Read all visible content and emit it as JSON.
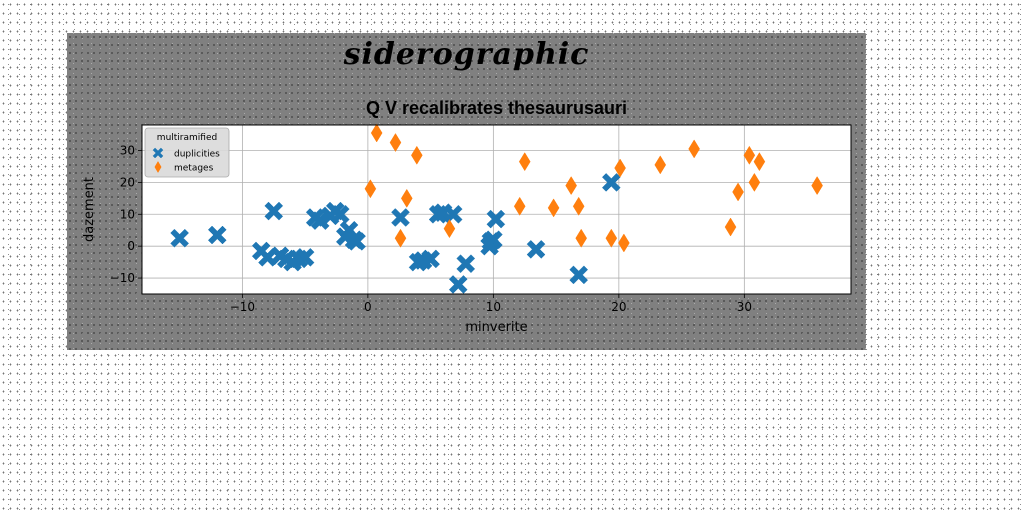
{
  "suptitle": "siderographic",
  "chart_data": {
    "type": "scatter",
    "title": "Q V recalibrates thesaurusauri",
    "xlabel": "minverite",
    "ylabel": "dazement",
    "xlim": [
      -18,
      38.5
    ],
    "ylim": [
      -15,
      38
    ],
    "xticks": [
      -10,
      0,
      10,
      20,
      30
    ],
    "yticks": [
      -10,
      0,
      10,
      20,
      30
    ],
    "grid": true,
    "legend": {
      "title": "multiramified",
      "placement": "top-left"
    },
    "series": [
      {
        "name": "duplicities",
        "marker": "X",
        "color": "#1f77b4",
        "x": [
          -15,
          -12,
          -8.5,
          -8,
          -7.5,
          -7,
          -6.5,
          -6,
          -5.5,
          -5,
          -4.2,
          -3.8,
          -3,
          -2.6,
          -2.2,
          -1.8,
          -1.5,
          -1.1,
          -0.9,
          2.6,
          4,
          4.4,
          5,
          5.6,
          6,
          6.8,
          7.2,
          7.8,
          9.7,
          9.8,
          10,
          10.2,
          13.4,
          16.8,
          19.4
        ],
        "y": [
          2.5,
          3.5,
          -1.5,
          -3.5,
          11,
          -3,
          -4,
          -5,
          -4,
          -3.5,
          9,
          8,
          9.5,
          11,
          10,
          3,
          5,
          2,
          1.5,
          9,
          -5,
          -4.5,
          -4,
          10,
          10.5,
          10,
          -12,
          -5.5,
          0,
          1.5,
          2,
          8.5,
          -1,
          -9,
          20
        ]
      },
      {
        "name": "metages",
        "marker": "d",
        "color": "#ff7f0e",
        "x": [
          0.2,
          0.7,
          2.2,
          2.6,
          3.1,
          3.9,
          6.5,
          12.1,
          12.5,
          14.8,
          16.2,
          16.8,
          17,
          19.4,
          20.1,
          20.4,
          23.3,
          26,
          28.9,
          29.5,
          30.4,
          30.8,
          31.2,
          35.8
        ],
        "y": [
          18,
          35.5,
          32.5,
          2.5,
          15,
          28.5,
          5.5,
          12.5,
          26.5,
          12,
          19,
          12.5,
          2.5,
          2.5,
          24.5,
          1,
          25.5,
          30.5,
          6,
          17,
          28.5,
          20,
          26.5,
          19
        ]
      }
    ]
  }
}
